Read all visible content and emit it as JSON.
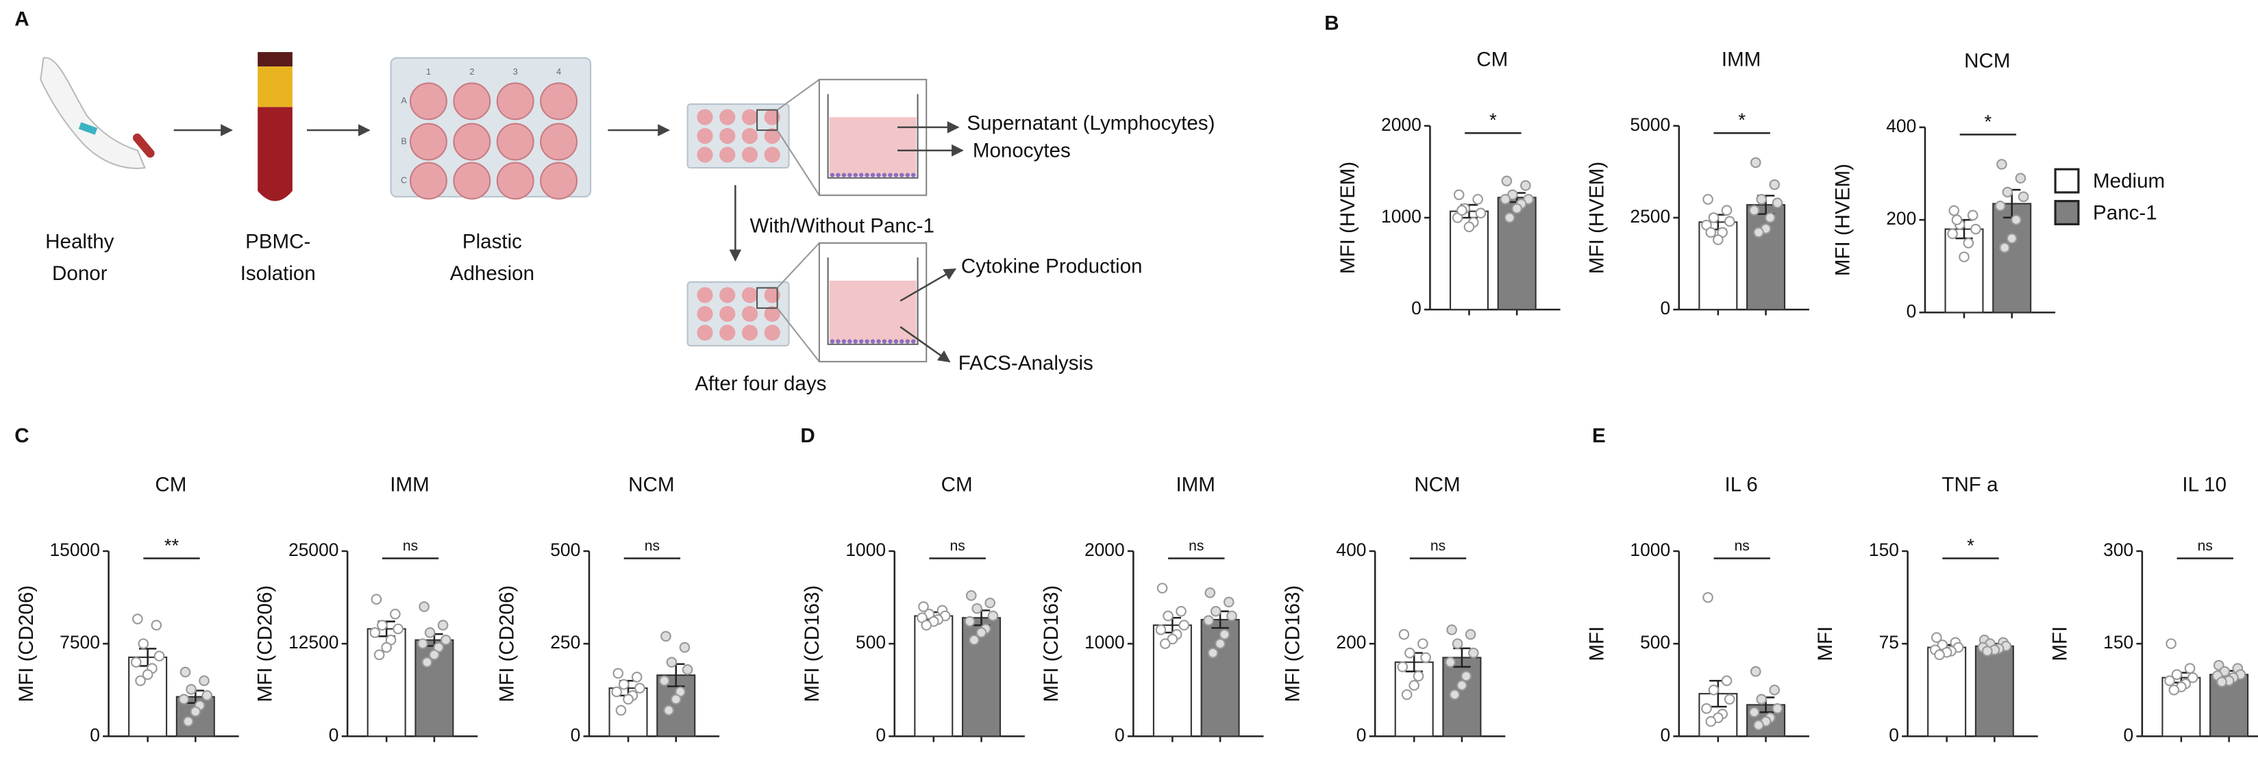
{
  "panel_labels": [
    "A",
    "B",
    "C",
    "D",
    "E"
  ],
  "diagram": {
    "donor": [
      "Healthy",
      "Donor"
    ],
    "isolation": [
      "PBMC-",
      "Isolation"
    ],
    "adhesion": [
      "Plastic",
      "Adhesion"
    ],
    "plate_columns": [
      "1",
      "2",
      "3",
      "4"
    ],
    "plate_rows": [
      "A",
      "B",
      "C"
    ],
    "supernatant": "Supernatant (Lymphocytes)",
    "monocytes": "Monocytes",
    "treatment": "With/Without Panc-1",
    "cytokine": "Cytokine Production",
    "facs": "FACS-Analysis",
    "after": "After four days"
  },
  "legend": [
    {
      "name": "Medium",
      "color": "#ffffff"
    },
    {
      "name": "Panc-1",
      "color": "#808080"
    }
  ],
  "chart_data": [
    {
      "type": "bar",
      "title": "CM",
      "ylabel": "MFI (HVEM)",
      "ylim": [
        0,
        2000
      ],
      "yticks": [
        0,
        1000,
        2000
      ],
      "values": [
        1070,
        1220
      ],
      "errors": [
        70,
        50
      ],
      "annotation": "*",
      "points": [
        [
          1250,
          1200,
          1100,
          1050,
          1000,
          950,
          900,
          1080
        ],
        [
          1400,
          1350,
          1250,
          1200,
          1200,
          1150,
          1100,
          1000
        ]
      ]
    },
    {
      "type": "bar",
      "title": "IMM",
      "ylabel": "MFI (HVEM)",
      "ylim": [
        0,
        5000
      ],
      "yticks": [
        0,
        2500,
        5000
      ],
      "values": [
        2380,
        2850
      ],
      "errors": [
        200,
        250
      ],
      "annotation": "*",
      "points": [
        [
          3000,
          2700,
          2500,
          2400,
          2300,
          2100,
          1900,
          2100
        ],
        [
          4000,
          3400,
          3000,
          2900,
          2700,
          2500,
          2200,
          2100
        ]
      ]
    },
    {
      "type": "bar",
      "title": "NCM",
      "ylabel": "MFI (HVEM)",
      "ylim": [
        0,
        400
      ],
      "yticks": [
        0,
        200,
        400
      ],
      "values": [
        180,
        235
      ],
      "errors": [
        20,
        30
      ],
      "annotation": "*",
      "points": [
        [
          220,
          210,
          190,
          180,
          170,
          150,
          120,
          200
        ],
        [
          320,
          290,
          260,
          250,
          230,
          200,
          160,
          140
        ]
      ]
    },
    {
      "type": "bar",
      "title": "CM",
      "ylabel": "MFI (CD206)",
      "ylim": [
        0,
        15000
      ],
      "yticks": [
        0,
        7500,
        15000
      ],
      "values": [
        6400,
        3200
      ],
      "errors": [
        700,
        500
      ],
      "annotation": "**",
      "points": [
        [
          9500,
          9000,
          7500,
          6500,
          6000,
          5500,
          5000,
          4500
        ],
        [
          5200,
          4500,
          3800,
          3300,
          3000,
          2500,
          2000,
          1200
        ]
      ]
    },
    {
      "type": "bar",
      "title": "IMM",
      "ylabel": "MFI (CD206)",
      "ylim": [
        0,
        25000
      ],
      "yticks": [
        0,
        12500,
        25000
      ],
      "values": [
        14500,
        13000
      ],
      "errors": [
        1000,
        800
      ],
      "annotation": "ns",
      "points": [
        [
          18500,
          16500,
          15000,
          14500,
          14000,
          13000,
          12000,
          11000
        ],
        [
          17500,
          15000,
          14000,
          13000,
          12500,
          12000,
          11000,
          10000
        ]
      ]
    },
    {
      "type": "bar",
      "title": "NCM",
      "ylabel": "MFI (CD206)",
      "ylim": [
        0,
        500
      ],
      "yticks": [
        0,
        250,
        500
      ],
      "values": [
        130,
        165
      ],
      "errors": [
        20,
        30
      ],
      "annotation": "ns",
      "points": [
        [
          170,
          160,
          140,
          130,
          120,
          110,
          100,
          70
        ],
        [
          270,
          240,
          200,
          180,
          150,
          120,
          100,
          70
        ]
      ]
    },
    {
      "type": "bar",
      "title": "CM",
      "ylabel": "MFI (CD163)",
      "ylim": [
        0,
        1000
      ],
      "yticks": [
        0,
        500,
        1000
      ],
      "values": [
        650,
        640
      ],
      "errors": [
        20,
        40
      ],
      "annotation": "ns",
      "points": [
        [
          700,
          680,
          660,
          650,
          640,
          630,
          620,
          600
        ],
        [
          760,
          720,
          690,
          650,
          620,
          580,
          560,
          520
        ]
      ]
    },
    {
      "type": "bar",
      "title": "IMM",
      "ylabel": "MFI (CD163)",
      "ylim": [
        0,
        2000
      ],
      "yticks": [
        0,
        1000,
        2000
      ],
      "values": [
        1200,
        1260
      ],
      "errors": [
        80,
        90
      ],
      "annotation": "ns",
      "points": [
        [
          1600,
          1350,
          1300,
          1200,
          1150,
          1100,
          1050,
          1000
        ],
        [
          1550,
          1450,
          1350,
          1300,
          1250,
          1100,
          1000,
          900
        ]
      ]
    },
    {
      "type": "bar",
      "title": "NCM",
      "ylabel": "MFI (CD163)",
      "ylim": [
        0,
        400
      ],
      "yticks": [
        0,
        200,
        400
      ],
      "values": [
        160,
        170
      ],
      "errors": [
        20,
        20
      ],
      "annotation": "ns",
      "points": [
        [
          220,
          200,
          180,
          170,
          150,
          130,
          110,
          90
        ],
        [
          230,
          220,
          200,
          180,
          160,
          130,
          110,
          90
        ]
      ]
    },
    {
      "type": "bar",
      "title": "IL 6",
      "ylabel": "MFI",
      "ylim": [
        0,
        1000
      ],
      "yticks": [
        0,
        500,
        1000
      ],
      "values": [
        230,
        170
      ],
      "errors": [
        70,
        40
      ],
      "annotation": "ns",
      "points": [
        [
          750,
          300,
          250,
          200,
          150,
          120,
          100,
          80
        ],
        [
          350,
          250,
          200,
          150,
          130,
          100,
          80,
          60
        ]
      ]
    },
    {
      "type": "bar",
      "title": "TNF a",
      "ylabel": "MFI",
      "ylim": [
        0,
        150
      ],
      "yticks": [
        0,
        75,
        150
      ],
      "values": [
        72,
        73
      ],
      "errors": [
        2,
        2
      ],
      "annotation": "*",
      "points": [
        [
          80,
          76,
          74,
          72,
          70,
          69,
          68,
          66
        ],
        [
          78,
          76,
          75,
          73,
          72,
          71,
          70,
          69
        ]
      ]
    },
    {
      "type": "bar",
      "title": "IL 10",
      "ylabel": "MFI",
      "ylim": [
        0,
        300
      ],
      "yticks": [
        0,
        150,
        300
      ],
      "values": [
        95,
        100
      ],
      "errors": [
        8,
        6
      ],
      "annotation": "ns",
      "points": [
        [
          150,
          110,
          100,
          95,
          90,
          85,
          80,
          75
        ],
        [
          115,
          110,
          105,
          100,
          98,
          95,
          90,
          88
        ]
      ]
    }
  ]
}
